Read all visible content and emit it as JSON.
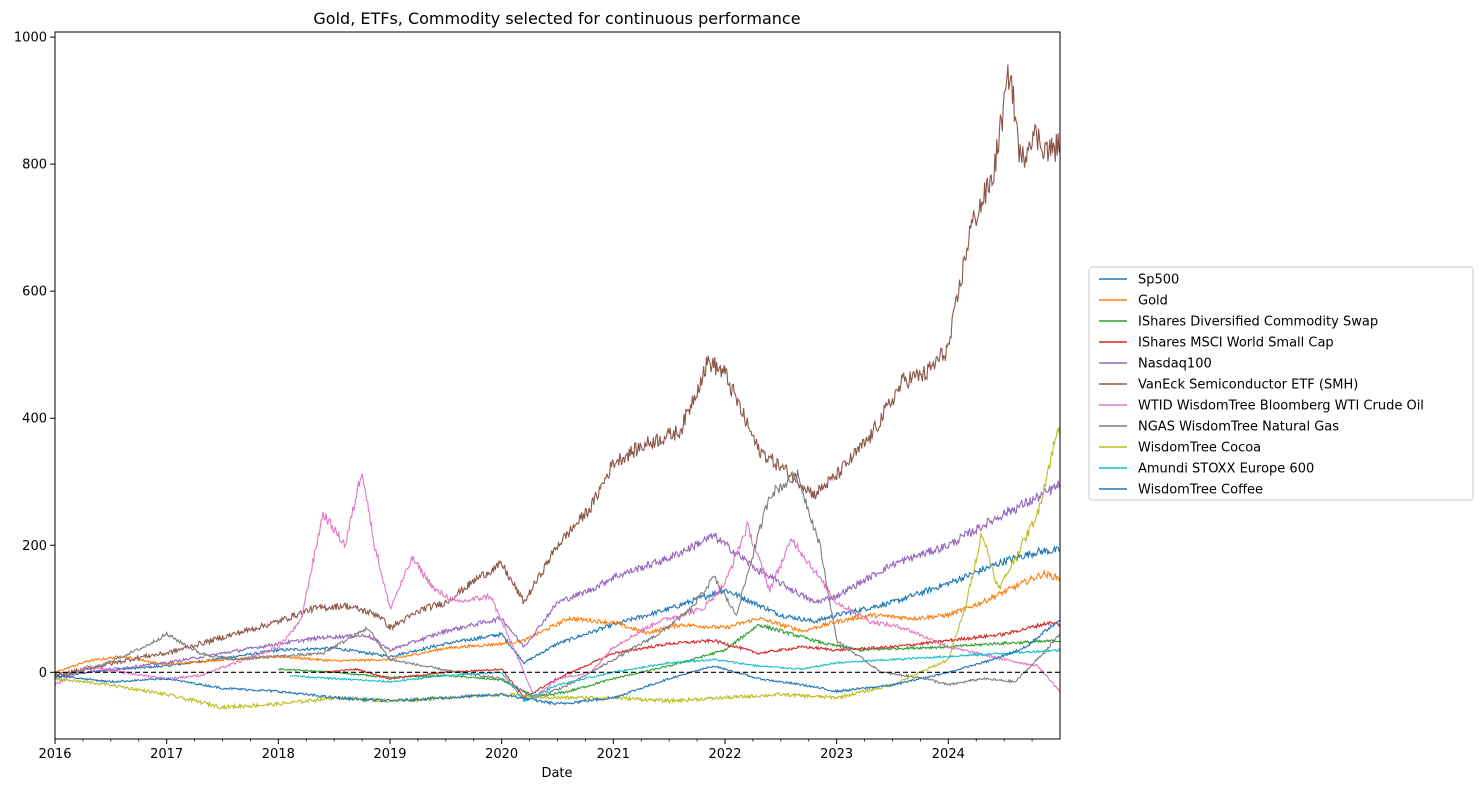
{
  "chart_data": {
    "type": "line",
    "title": "Gold, ETFs, Commodity selected for continuous performance",
    "xlabel": "Date",
    "ylabel": "",
    "xlim": [
      2016.0,
      2025.0
    ],
    "ylim": [
      -105,
      1008
    ],
    "x_ticks": [
      "2016",
      "2017",
      "2018",
      "2019",
      "2020",
      "2021",
      "2022",
      "2023",
      "2024"
    ],
    "y_ticks": [
      0,
      200,
      400,
      600,
      800,
      1000
    ],
    "reference_line": {
      "y": 0,
      "style": "dashed",
      "color": "#000000"
    },
    "legend_position": "right-outside",
    "series": [
      {
        "name": "Sp500",
        "color": "#1f77b4",
        "points": [
          [
            2016.0,
            -8
          ],
          [
            2016.3,
            0
          ],
          [
            2016.6,
            5
          ],
          [
            2017.0,
            10
          ],
          [
            2017.5,
            22
          ],
          [
            2018.0,
            35
          ],
          [
            2018.5,
            38
          ],
          [
            2019.0,
            25
          ],
          [
            2019.5,
            45
          ],
          [
            2020.0,
            60
          ],
          [
            2020.2,
            15
          ],
          [
            2020.5,
            45
          ],
          [
            2021.0,
            75
          ],
          [
            2021.5,
            100
          ],
          [
            2022.0,
            130
          ],
          [
            2022.5,
            90
          ],
          [
            2022.8,
            80
          ],
          [
            2023.0,
            90
          ],
          [
            2023.5,
            110
          ],
          [
            2024.0,
            140
          ],
          [
            2024.5,
            175
          ],
          [
            2024.8,
            190
          ],
          [
            2025.0,
            192
          ]
        ]
      },
      {
        "name": "Gold",
        "color": "#ff7f0e",
        "points": [
          [
            2016.0,
            0
          ],
          [
            2016.3,
            18
          ],
          [
            2016.6,
            25
          ],
          [
            2017.0,
            12
          ],
          [
            2017.5,
            20
          ],
          [
            2018.0,
            25
          ],
          [
            2018.5,
            18
          ],
          [
            2019.0,
            20
          ],
          [
            2019.5,
            38
          ],
          [
            2020.0,
            45
          ],
          [
            2020.2,
            50
          ],
          [
            2020.6,
            85
          ],
          [
            2021.0,
            78
          ],
          [
            2021.3,
            62
          ],
          [
            2021.6,
            75
          ],
          [
            2022.0,
            70
          ],
          [
            2022.3,
            85
          ],
          [
            2022.7,
            65
          ],
          [
            2023.0,
            80
          ],
          [
            2023.3,
            90
          ],
          [
            2023.7,
            85
          ],
          [
            2024.0,
            90
          ],
          [
            2024.3,
            110
          ],
          [
            2024.6,
            135
          ],
          [
            2024.85,
            155
          ],
          [
            2025.0,
            148
          ]
        ]
      },
      {
        "name": "IShares Diversified Commodity Swap",
        "color": "#2ca02c",
        "points": [
          [
            2018.0,
            5
          ],
          [
            2018.5,
            0
          ],
          [
            2019.0,
            -8
          ],
          [
            2019.5,
            -5
          ],
          [
            2020.0,
            -12
          ],
          [
            2020.3,
            -40
          ],
          [
            2020.6,
            -30
          ],
          [
            2021.0,
            -10
          ],
          [
            2021.5,
            10
          ],
          [
            2022.0,
            35
          ],
          [
            2022.3,
            75
          ],
          [
            2022.6,
            60
          ],
          [
            2022.9,
            45
          ],
          [
            2023.2,
            35
          ],
          [
            2023.6,
            38
          ],
          [
            2024.0,
            40
          ],
          [
            2024.4,
            45
          ],
          [
            2024.8,
            48
          ],
          [
            2025.0,
            50
          ]
        ]
      },
      {
        "name": "IShares MSCI World Small Cap",
        "color": "#d62728",
        "points": [
          [
            2018.4,
            0
          ],
          [
            2018.7,
            5
          ],
          [
            2019.0,
            -10
          ],
          [
            2019.5,
            0
          ],
          [
            2020.0,
            5
          ],
          [
            2020.2,
            -40
          ],
          [
            2020.5,
            -10
          ],
          [
            2021.0,
            30
          ],
          [
            2021.5,
            45
          ],
          [
            2021.9,
            50
          ],
          [
            2022.3,
            30
          ],
          [
            2022.7,
            40
          ],
          [
            2023.0,
            35
          ],
          [
            2023.5,
            40
          ],
          [
            2024.0,
            50
          ],
          [
            2024.5,
            60
          ],
          [
            2024.9,
            78
          ],
          [
            2025.0,
            75
          ]
        ]
      },
      {
        "name": "Nasdaq100",
        "color": "#9467bd",
        "points": [
          [
            2016.0,
            -5
          ],
          [
            2016.5,
            5
          ],
          [
            2017.0,
            15
          ],
          [
            2017.5,
            30
          ],
          [
            2018.0,
            45
          ],
          [
            2018.4,
            55
          ],
          [
            2018.8,
            58
          ],
          [
            2019.0,
            35
          ],
          [
            2019.5,
            65
          ],
          [
            2020.0,
            85
          ],
          [
            2020.2,
            40
          ],
          [
            2020.5,
            110
          ],
          [
            2020.8,
            130
          ],
          [
            2021.0,
            150
          ],
          [
            2021.5,
            180
          ],
          [
            2021.9,
            215
          ],
          [
            2022.3,
            160
          ],
          [
            2022.8,
            110
          ],
          [
            2023.0,
            120
          ],
          [
            2023.5,
            170
          ],
          [
            2024.0,
            200
          ],
          [
            2024.5,
            250
          ],
          [
            2024.8,
            275
          ],
          [
            2025.0,
            295
          ]
        ]
      },
      {
        "name": "VanEck Semiconductor ETF (SMH)",
        "color": "#8c564b",
        "points": [
          [
            2016.0,
            -5
          ],
          [
            2016.4,
            10
          ],
          [
            2016.8,
            25
          ],
          [
            2017.0,
            30
          ],
          [
            2017.5,
            55
          ],
          [
            2018.0,
            80
          ],
          [
            2018.3,
            100
          ],
          [
            2018.6,
            105
          ],
          [
            2018.9,
            90
          ],
          [
            2019.0,
            70
          ],
          [
            2019.3,
            100
          ],
          [
            2019.5,
            110
          ],
          [
            2019.8,
            150
          ],
          [
            2020.0,
            170
          ],
          [
            2020.2,
            110
          ],
          [
            2020.5,
            200
          ],
          [
            2020.8,
            260
          ],
          [
            2021.0,
            330
          ],
          [
            2021.3,
            360
          ],
          [
            2021.6,
            380
          ],
          [
            2021.85,
            490
          ],
          [
            2022.0,
            470
          ],
          [
            2022.3,
            350
          ],
          [
            2022.6,
            310
          ],
          [
            2022.8,
            280
          ],
          [
            2023.0,
            310
          ],
          [
            2023.3,
            370
          ],
          [
            2023.6,
            460
          ],
          [
            2023.8,
            470
          ],
          [
            2024.0,
            510
          ],
          [
            2024.2,
            700
          ],
          [
            2024.4,
            780
          ],
          [
            2024.55,
            950
          ],
          [
            2024.65,
            800
          ],
          [
            2024.75,
            850
          ],
          [
            2024.9,
            820
          ],
          [
            2025.0,
            830
          ]
        ]
      },
      {
        "name": "WTID WisdomTree Bloomberg WTI Crude Oil",
        "color": "#e377c2",
        "points": [
          [
            2016.0,
            -20
          ],
          [
            2016.3,
            10
          ],
          [
            2016.6,
            0
          ],
          [
            2017.0,
            -10
          ],
          [
            2017.3,
            -5
          ],
          [
            2017.7,
            20
          ],
          [
            2018.0,
            40
          ],
          [
            2018.2,
            80
          ],
          [
            2018.4,
            250
          ],
          [
            2018.6,
            200
          ],
          [
            2018.75,
            320
          ],
          [
            2018.85,
            210
          ],
          [
            2019.0,
            100
          ],
          [
            2019.2,
            180
          ],
          [
            2019.4,
            130
          ],
          [
            2019.6,
            110
          ],
          [
            2019.9,
            120
          ],
          [
            2020.1,
            40
          ],
          [
            2020.3,
            -40
          ],
          [
            2020.5,
            -10
          ],
          [
            2020.8,
            0
          ],
          [
            2021.0,
            40
          ],
          [
            2021.4,
            80
          ],
          [
            2021.8,
            100
          ],
          [
            2022.0,
            140
          ],
          [
            2022.2,
            230
          ],
          [
            2022.4,
            130
          ],
          [
            2022.6,
            210
          ],
          [
            2022.8,
            160
          ],
          [
            2023.0,
            110
          ],
          [
            2023.3,
            80
          ],
          [
            2023.6,
            70
          ],
          [
            2024.0,
            40
          ],
          [
            2024.5,
            20
          ],
          [
            2024.8,
            10
          ],
          [
            2025.0,
            -30
          ]
        ]
      },
      {
        "name": "NGAS WisdomTree Natural Gas",
        "color": "#7f7f7f",
        "points": [
          [
            2016.0,
            -10
          ],
          [
            2016.4,
            10
          ],
          [
            2016.8,
            40
          ],
          [
            2017.0,
            60
          ],
          [
            2017.3,
            30
          ],
          [
            2017.6,
            20
          ],
          [
            2018.0,
            25
          ],
          [
            2018.4,
            30
          ],
          [
            2018.8,
            70
          ],
          [
            2019.0,
            20
          ],
          [
            2019.3,
            10
          ],
          [
            2019.6,
            0
          ],
          [
            2020.0,
            -10
          ],
          [
            2020.3,
            -40
          ],
          [
            2020.6,
            -20
          ],
          [
            2021.0,
            20
          ],
          [
            2021.4,
            60
          ],
          [
            2021.7,
            100
          ],
          [
            2021.9,
            150
          ],
          [
            2022.1,
            90
          ],
          [
            2022.4,
            280
          ],
          [
            2022.65,
            310
          ],
          [
            2022.85,
            200
          ],
          [
            2023.0,
            50
          ],
          [
            2023.4,
            0
          ],
          [
            2023.8,
            -10
          ],
          [
            2024.0,
            -20
          ],
          [
            2024.3,
            -10
          ],
          [
            2024.6,
            -15
          ],
          [
            2024.85,
            30
          ],
          [
            2025.0,
            60
          ]
        ]
      },
      {
        "name": "WisdomTree Cocoa",
        "color": "#bcbd22",
        "points": [
          [
            2016.0,
            -10
          ],
          [
            2016.5,
            -20
          ],
          [
            2017.0,
            -35
          ],
          [
            2017.5,
            -55
          ],
          [
            2018.0,
            -50
          ],
          [
            2018.5,
            -40
          ],
          [
            2019.0,
            -45
          ],
          [
            2019.5,
            -40
          ],
          [
            2020.0,
            -35
          ],
          [
            2020.5,
            -40
          ],
          [
            2021.0,
            -40
          ],
          [
            2021.5,
            -45
          ],
          [
            2022.0,
            -40
          ],
          [
            2022.5,
            -35
          ],
          [
            2023.0,
            -40
          ],
          [
            2023.5,
            -20
          ],
          [
            2024.0,
            20
          ],
          [
            2024.15,
            100
          ],
          [
            2024.3,
            220
          ],
          [
            2024.45,
            130
          ],
          [
            2024.6,
            180
          ],
          [
            2024.8,
            250
          ],
          [
            2024.95,
            360
          ],
          [
            2025.0,
            390
          ]
        ]
      },
      {
        "name": "Amundi STOXX Europe 600",
        "color": "#17becf",
        "points": [
          [
            2018.1,
            -5
          ],
          [
            2018.5,
            -10
          ],
          [
            2019.0,
            -15
          ],
          [
            2019.5,
            -5
          ],
          [
            2020.0,
            0
          ],
          [
            2020.2,
            -45
          ],
          [
            2020.5,
            -20
          ],
          [
            2021.0,
            0
          ],
          [
            2021.5,
            15
          ],
          [
            2021.9,
            20
          ],
          [
            2022.3,
            10
          ],
          [
            2022.7,
            5
          ],
          [
            2023.0,
            15
          ],
          [
            2023.5,
            20
          ],
          [
            2024.0,
            25
          ],
          [
            2024.5,
            30
          ],
          [
            2025.0,
            35
          ]
        ]
      },
      {
        "name": "WisdomTree Coffee",
        "color": "#1f77b4",
        "points": [
          [
            2016.0,
            -5
          ],
          [
            2016.5,
            -15
          ],
          [
            2017.0,
            -10
          ],
          [
            2017.5,
            -25
          ],
          [
            2018.0,
            -30
          ],
          [
            2018.5,
            -40
          ],
          [
            2019.0,
            -45
          ],
          [
            2019.5,
            -40
          ],
          [
            2020.0,
            -35
          ],
          [
            2020.5,
            -50
          ],
          [
            2021.0,
            -40
          ],
          [
            2021.5,
            -10
          ],
          [
            2021.9,
            10
          ],
          [
            2022.3,
            -10
          ],
          [
            2022.7,
            -20
          ],
          [
            2023.0,
            -30
          ],
          [
            2023.5,
            -20
          ],
          [
            2024.0,
            0
          ],
          [
            2024.4,
            20
          ],
          [
            2024.7,
            40
          ],
          [
            2024.9,
            70
          ],
          [
            2025.0,
            80
          ]
        ]
      }
    ]
  }
}
